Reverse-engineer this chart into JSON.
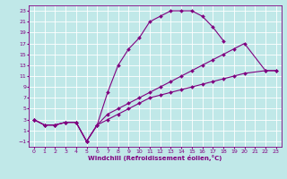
{
  "xlabel": "Windchill (Refroidissement éolien,°C)",
  "bg_color": "#c0e8e8",
  "line_color": "#800080",
  "grid_color": "#ffffff",
  "xlim": [
    -0.5,
    23.5
  ],
  "ylim": [
    -2,
    24
  ],
  "xticks": [
    0,
    1,
    2,
    3,
    4,
    5,
    6,
    7,
    8,
    9,
    10,
    11,
    12,
    13,
    14,
    15,
    16,
    17,
    18,
    19,
    20,
    21,
    22,
    23
  ],
  "yticks": [
    -1,
    1,
    3,
    5,
    7,
    9,
    11,
    13,
    15,
    17,
    19,
    21,
    23
  ],
  "curves": [
    {
      "x": [
        0,
        1,
        2,
        3,
        4,
        5,
        6,
        7,
        8,
        9,
        10,
        11,
        12,
        13,
        14,
        15,
        16,
        17,
        18,
        19,
        20,
        21,
        22,
        23
      ],
      "y": [
        3,
        2,
        2,
        2.5,
        2.5,
        -1,
        2,
        8,
        13,
        16,
        18,
        21,
        22,
        23,
        23,
        23,
        22,
        20,
        17.5,
        null,
        null,
        null,
        null,
        null
      ]
    },
    {
      "x": [
        0,
        1,
        2,
        3,
        4,
        5,
        6,
        7,
        8,
        9,
        10,
        11,
        12,
        13,
        14,
        15,
        16,
        17,
        18,
        19,
        20,
        21,
        22,
        23
      ],
      "y": [
        3,
        2,
        2,
        2.5,
        2.5,
        -1,
        2,
        4,
        5,
        6,
        7,
        8,
        9,
        10,
        11,
        12,
        13,
        14,
        15,
        16,
        17,
        null,
        12,
        12
      ]
    },
    {
      "x": [
        0,
        1,
        2,
        3,
        4,
        5,
        6,
        7,
        8,
        9,
        10,
        11,
        12,
        13,
        14,
        15,
        16,
        17,
        18,
        19,
        20,
        21,
        22,
        23
      ],
      "y": [
        3,
        2,
        2,
        2.5,
        2.5,
        -1,
        2,
        3,
        4,
        5,
        6,
        7,
        7.5,
        8,
        8.5,
        9,
        9.5,
        10,
        10.5,
        11,
        11.5,
        null,
        12,
        12
      ]
    }
  ]
}
